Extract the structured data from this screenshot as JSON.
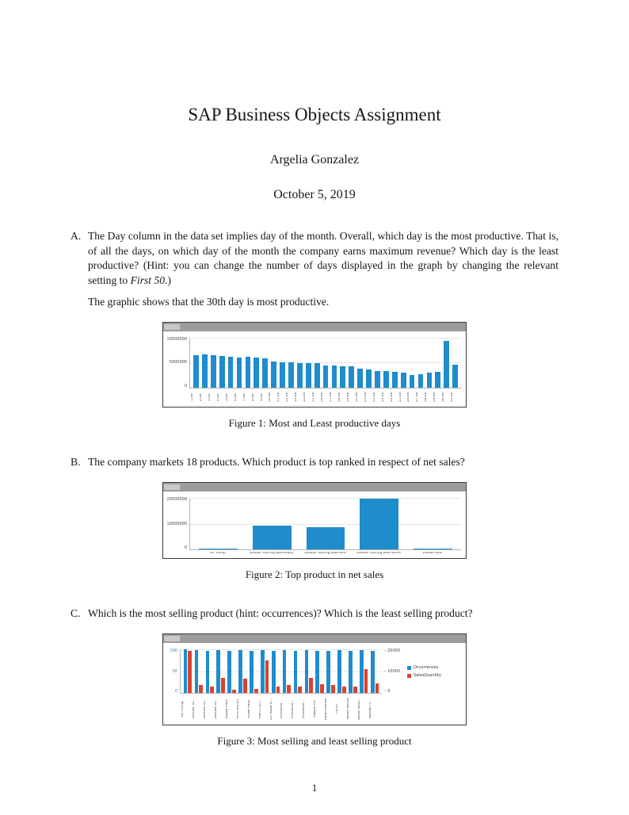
{
  "doc": {
    "title": "SAP Business Objects Assignment",
    "author": "Argelia Gonzalez",
    "date": "October 5, 2019",
    "page_number": "1"
  },
  "questions": [
    {
      "label": "A.",
      "text_before": "The Day column in the data set implies day of the month. Overall, which day is the most productive. That is, of all the days, on which day of the month the company earns maximum revenue? Which day is the least productive? (Hint: you can change the number of days displayed in the graph by changing the relevant setting to ",
      "text_italic": "First 50.",
      "text_after": ")",
      "followup": "The graphic shows that the 30th day is most productive."
    },
    {
      "label": "B.",
      "text": "The company markets 18 products. Which product is top ranked in respect of net sales?"
    },
    {
      "label": "C.",
      "text": "Which is the most selling product (hint: occurrences)? Which is the least selling product?"
    }
  ],
  "figures": [
    {
      "caption": "Figure 1: Most and Least productive days"
    },
    {
      "caption": "Figure 2: Top product in net sales"
    },
    {
      "caption": "Figure 3: Most selling and least selling product"
    }
  ],
  "colors": {
    "bar_blue": "#1f8ccc",
    "bar_red": "#d9422f",
    "chart_header_gray": "#9c9c9c"
  },
  "chart_data": [
    {
      "type": "bar",
      "title": "",
      "xlabel": "",
      "ylabel": "",
      "ylim": [
        0,
        10000000
      ],
      "yticks": [
        "10000000",
        "5000000",
        "0"
      ],
      "bar_color": "#1f8ccc",
      "categories": [
        "1.00",
        "2.00",
        "3.00",
        "4.00",
        "5.00",
        "6.00",
        "7.00",
        "8.00",
        "9.00",
        "10.00",
        "11.00",
        "12.00",
        "13.00",
        "14.00",
        "15.00",
        "16.00",
        "17.00",
        "18.00",
        "19.00",
        "20.00",
        "21.00",
        "22.00",
        "23.00",
        "24.00",
        "25.00",
        "26.00",
        "27.00",
        "28.00",
        "29.00",
        "30.00",
        "31.00"
      ],
      "values": [
        6400000,
        6650000,
        6500000,
        6250000,
        6100000,
        6050000,
        6150000,
        6000000,
        5800000,
        5200000,
        5050000,
        5100000,
        4900000,
        4850000,
        4800000,
        4450000,
        4400000,
        4300000,
        4200000,
        3700000,
        3600000,
        3350000,
        3250000,
        3100000,
        2900000,
        2500000,
        2600000,
        3000000,
        3200000,
        9400000,
        4500000
      ]
    },
    {
      "type": "bar",
      "title": "",
      "xlabel": "",
      "ylabel": "",
      "ylim": [
        0,
        20000000
      ],
      "yticks": [
        "20000000",
        "10000000",
        "0"
      ],
      "bar_color": "#1f8ccc",
      "categories": [
        "Air Pump",
        "Deluxe Touring Bike-Black",
        "Deluxe Touring Bike-Red",
        "Deluxe Touring Bike-Silver",
        "Elbow Pads"
      ],
      "values": [
        200000,
        9200000,
        8500000,
        19600000,
        250000
      ]
    },
    {
      "type": "grouped-bar",
      "title": "",
      "xlabel": "",
      "ylabel": "",
      "left_ylim": [
        0,
        100
      ],
      "left_yticks": [
        "100",
        "50",
        "0"
      ],
      "right_ylim": [
        0,
        20000
      ],
      "right_yticks": [
        "20000",
        "10000",
        "0"
      ],
      "legend_position": "right",
      "categories": [
        "Air Pump",
        "Deluxe To...",
        "Deluxe To...",
        "Deluxe To...",
        "Elbow Pads",
        "First Aid Kit",
        "Knee Pads",
        "Men's Off...",
        "Off Road H...",
        "Professio...",
        "Professio...",
        "Professio...",
        "Repair Kit",
        "Road Helmet",
        "T-shirt",
        "Water Bottle",
        "Water Bottl...",
        "Women's..."
      ],
      "series": [
        {
          "name": "Occurrences",
          "axis": "left",
          "color": "#1f8ccc",
          "values": [
            100,
            98,
            97,
            98,
            97,
            98,
            97,
            98,
            96,
            98,
            97,
            98,
            97,
            96,
            98,
            97,
            98,
            96
          ]
        },
        {
          "name": "SalesQuantity",
          "axis": "right",
          "color": "#d9422f",
          "values": [
            19400,
            3600,
            3000,
            7000,
            1600,
            6600,
            2000,
            15000,
            3000,
            3600,
            3000,
            7000,
            4000,
            3600,
            3000,
            3000,
            11000,
            4400
          ]
        }
      ]
    }
  ]
}
